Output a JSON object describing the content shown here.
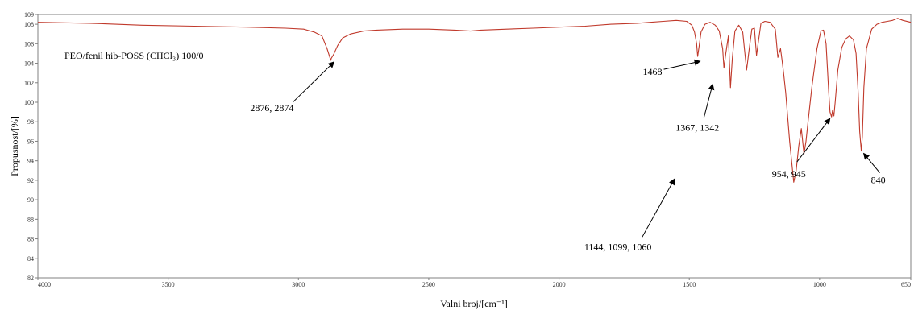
{
  "chart_data": {
    "type": "line",
    "title": "",
    "xlabel": "Valni broj/[cm⁻¹]",
    "ylabel": "Propusnost/[%]",
    "xlim": [
      4000,
      650
    ],
    "ylim": [
      82,
      109
    ],
    "x_reversed": true,
    "grid": false,
    "legend": "none",
    "x_ticks": [
      4000,
      3500,
      3000,
      2500,
      2000,
      1500,
      1000,
      650
    ],
    "y_ticks": [
      82,
      84,
      86,
      88,
      90,
      92,
      94,
      96,
      98,
      100,
      102,
      104,
      106,
      108,
      109
    ],
    "series": [
      {
        "color": "#c0392b",
        "x": [
          4000,
          3800,
          3600,
          3400,
          3200,
          3050,
          2980,
          2940,
          2910,
          2890,
          2876,
          2874,
          2865,
          2850,
          2830,
          2800,
          2750,
          2700,
          2600,
          2500,
          2400,
          2340,
          2300,
          2200,
          2100,
          2000,
          1900,
          1800,
          1700,
          1650,
          1600,
          1550,
          1510,
          1490,
          1480,
          1472,
          1468,
          1462,
          1455,
          1440,
          1420,
          1400,
          1385,
          1372,
          1367,
          1360,
          1350,
          1342,
          1335,
          1325,
          1310,
          1295,
          1280,
          1270,
          1260,
          1250,
          1242,
          1235,
          1225,
          1210,
          1190,
          1170,
          1160,
          1150,
          1144,
          1138,
          1130,
          1115,
          1099,
          1090,
          1080,
          1070,
          1060,
          1052,
          1045,
          1030,
          1010,
          995,
          985,
          975,
          965,
          960,
          954,
          950,
          945,
          940,
          930,
          915,
          900,
          885,
          870,
          860,
          852,
          846,
          840,
          836,
          830,
          820,
          800,
          780,
          760,
          740,
          720,
          700,
          680,
          650
        ],
        "y": [
          108.2,
          108.1,
          107.9,
          107.8,
          107.7,
          107.6,
          107.5,
          107.2,
          106.8,
          105.5,
          104.3,
          104.5,
          104.9,
          105.8,
          106.6,
          107.0,
          107.3,
          107.4,
          107.5,
          107.5,
          107.4,
          107.3,
          107.4,
          107.5,
          107.6,
          107.7,
          107.8,
          108.0,
          108.1,
          108.2,
          108.3,
          108.4,
          108.3,
          107.9,
          107.2,
          106.0,
          104.7,
          105.8,
          107.2,
          108.0,
          108.2,
          107.9,
          107.3,
          105.5,
          103.5,
          105.0,
          106.8,
          101.5,
          104.5,
          107.3,
          107.9,
          107.2,
          103.3,
          105.5,
          107.5,
          107.6,
          104.8,
          106.2,
          108.1,
          108.3,
          108.2,
          107.5,
          104.6,
          105.5,
          104.3,
          103.0,
          101.0,
          96.0,
          91.8,
          93.0,
          95.5,
          97.3,
          94.7,
          96.0,
          97.8,
          101.5,
          105.5,
          107.3,
          107.4,
          106.0,
          101.0,
          99.0,
          98.5,
          99.2,
          98.6,
          100.0,
          103.3,
          105.6,
          106.5,
          106.8,
          106.4,
          105.0,
          101.0,
          97.0,
          95.0,
          96.5,
          101.5,
          105.5,
          107.5,
          108.0,
          108.2,
          108.3,
          108.4,
          108.6,
          108.4,
          108.2
        ]
      }
    ],
    "annotations": [
      {
        "text": "2876, 2874",
        "x": 2876,
        "y": 104.3
      },
      {
        "text": "1468",
        "x": 1468,
        "y": 104.7
      },
      {
        "text": "1367, 1342",
        "x": 1367,
        "y": 103.5
      },
      {
        "text": "1144, 1099, 1060",
        "x": 1099,
        "y": 91.8
      },
      {
        "text": "954, 945",
        "x": 954,
        "y": 98.5
      },
      {
        "text": "840",
        "x": 840,
        "y": 95.0
      }
    ],
    "sample_label": "PEO/fenil  hib-POSS (CHCl₃) 100/0"
  }
}
